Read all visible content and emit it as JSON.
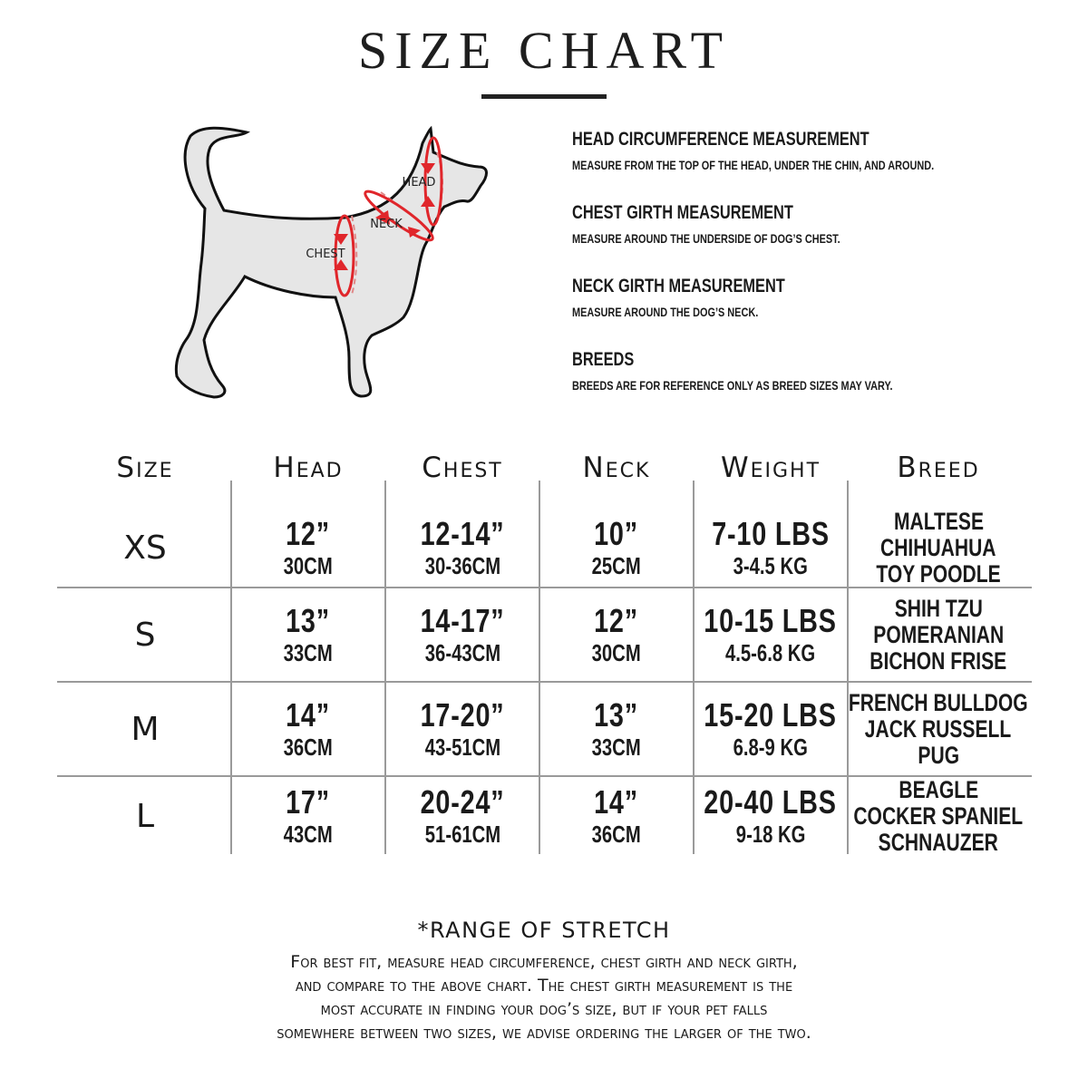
{
  "title": "SIZE CHART",
  "diagram": {
    "labels": {
      "head": "HEAD",
      "neck": "NECK",
      "chest": "CHEST"
    },
    "arrow_color": "#e0262b",
    "body_color": "#e6e6e6"
  },
  "measurements": [
    {
      "heading": "HEAD CIRCUMFERENCE MEASUREMENT",
      "desc": "MEASURE FROM THE TOP OF THE HEAD, UNDER THE CHIN, AND AROUND."
    },
    {
      "heading": "CHEST GIRTH MEASUREMENT",
      "desc": "MEASURE AROUND THE UNDERSIDE OF DOG’S CHEST."
    },
    {
      "heading": "NECK GIRTH MEASUREMENT",
      "desc": "MEASURE AROUND THE DOG’S NECK."
    },
    {
      "heading": "BREEDS",
      "desc": "BREEDS ARE FOR REFERENCE ONLY AS BREED SIZES MAY VARY."
    }
  ],
  "table": {
    "columns": [
      "Size",
      "Head",
      "Chest",
      "Neck",
      "Weight",
      "Breed"
    ],
    "rows": [
      {
        "size": "XS",
        "head": [
          "12”",
          "30CM"
        ],
        "chest": [
          "12-14”",
          "30-36CM"
        ],
        "neck": [
          "10”",
          "25CM"
        ],
        "weight": [
          "7-10 LBS",
          "3-4.5 KG"
        ],
        "breed": [
          "MALTESE",
          "CHIHUAHUA",
          "TOY POODLE"
        ]
      },
      {
        "size": "S",
        "head": [
          "13”",
          "33CM"
        ],
        "chest": [
          "14-17”",
          "36-43CM"
        ],
        "neck": [
          "12”",
          "30CM"
        ],
        "weight": [
          "10-15 LBS",
          "4.5-6.8 KG"
        ],
        "breed": [
          "SHIH TZU",
          "POMERANIAN",
          "BICHON FRISE"
        ]
      },
      {
        "size": "M",
        "head": [
          "14”",
          "36CM"
        ],
        "chest": [
          "17-20”",
          "43-51CM"
        ],
        "neck": [
          "13”",
          "33CM"
        ],
        "weight": [
          "15-20 LBS",
          "6.8-9 KG"
        ],
        "breed": [
          "FRENCH BULLDOG",
          "JACK RUSSELL",
          "PUG"
        ]
      },
      {
        "size": "L",
        "head": [
          "17”",
          "43CM"
        ],
        "chest": [
          "20-24”",
          "51-61CM"
        ],
        "neck": [
          "14”",
          "36CM"
        ],
        "weight": [
          "20-40 LBS",
          "9-18 KG"
        ],
        "breed": [
          "BEAGLE",
          "COCKER SPANIEL",
          "SCHNAUZER"
        ]
      }
    ]
  },
  "footer": {
    "title": "*RANGE OF STRETCH",
    "lines": [
      "For best fit, measure head circumference, chest girth and neck girth,",
      "and compare to the above chart. The chest girth measurement is the",
      "most accurate in finding your dog’s size, but if your pet falls",
      "somewhere between two sizes, we advise ordering the larger of the two."
    ]
  }
}
